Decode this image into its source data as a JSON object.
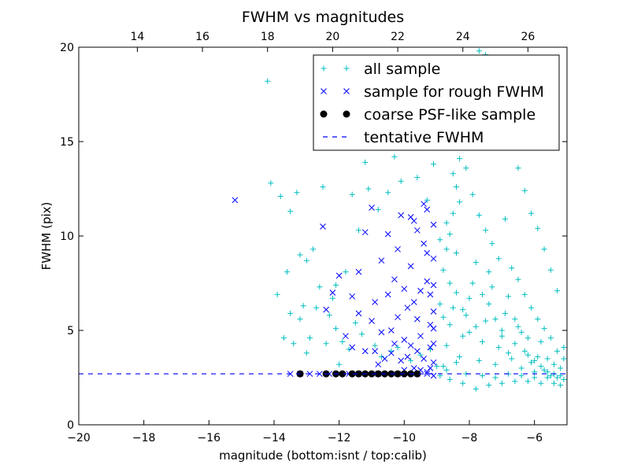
{
  "chart_data": {
    "type": "scatter",
    "title": "FWHM vs magnitudes",
    "xlabel": "magnitude (bottom:isnt / top:calib)",
    "ylabel": "FWHM (pix)",
    "xlim": [
      -20,
      -5
    ],
    "ylim": [
      0,
      20
    ],
    "x_ticks": [
      "−20",
      "−18",
      "−16",
      "−14",
      "−12",
      "−10",
      "−8",
      "−6"
    ],
    "y_ticks": [
      "0",
      "5",
      "10",
      "15",
      "20"
    ],
    "top_axis": {
      "ticks": [
        "14",
        "16",
        "18",
        "20",
        "22",
        "24",
        "26"
      ],
      "calib_minus_isnt_offset": 32.2
    },
    "grid": false,
    "legend_position": "top-right",
    "series": [
      {
        "name": "all sample",
        "marker": "plus",
        "color": "#00bfbf",
        "points": [
          [
            -14.2,
            18.2
          ],
          [
            -14.1,
            12.8
          ],
          [
            -13.8,
            12.1
          ],
          [
            -13.5,
            11.3
          ],
          [
            -13.3,
            12.3
          ],
          [
            -13.6,
            8.1
          ],
          [
            -13.2,
            9.0
          ],
          [
            -13.0,
            8.7
          ],
          [
            -12.8,
            9.3
          ],
          [
            -12.6,
            7.3
          ],
          [
            -12.5,
            12.6
          ],
          [
            -12.7,
            6.2
          ],
          [
            -12.2,
            6.7
          ],
          [
            -12.1,
            7.4
          ],
          [
            -11.8,
            8.1
          ],
          [
            -11.6,
            12.2
          ],
          [
            -11.4,
            10.3
          ],
          [
            -11.2,
            13.9
          ],
          [
            -11.1,
            12.5
          ],
          [
            -10.8,
            11.4
          ],
          [
            -10.5,
            12.3
          ],
          [
            -10.3,
            14.2
          ],
          [
            -10.1,
            12.9
          ],
          [
            -9.9,
            16.3
          ],
          [
            -9.6,
            13.1
          ],
          [
            -9.3,
            11.9
          ],
          [
            -9.1,
            13.8
          ],
          [
            -13.7,
            4.6
          ],
          [
            -13.4,
            4.3
          ],
          [
            -13.2,
            5.6
          ],
          [
            -13.0,
            3.8
          ],
          [
            -12.9,
            4.6
          ],
          [
            -12.4,
            4.3
          ],
          [
            -12.1,
            5.1
          ],
          [
            -11.9,
            4.4
          ],
          [
            -11.7,
            4.0
          ],
          [
            -13.9,
            6.9
          ],
          [
            -13.5,
            5.9
          ],
          [
            -13.1,
            6.3
          ],
          [
            -12.3,
            5.8
          ],
          [
            -12.0,
            3.2
          ],
          [
            -11.5,
            5.4
          ],
          [
            -11.3,
            4.8
          ],
          [
            -10.9,
            4.2
          ],
          [
            -10.7,
            3.6
          ],
          [
            -10.4,
            3.9
          ],
          [
            -10.2,
            4.1
          ],
          [
            -9.8,
            3.4
          ],
          [
            -9.5,
            3.7
          ],
          [
            -9.2,
            4.0
          ],
          [
            -9.0,
            3.1
          ],
          [
            -8.9,
            6.4
          ],
          [
            -8.8,
            8.2
          ],
          [
            -8.7,
            9.3
          ],
          [
            -8.6,
            10.1
          ],
          [
            -8.5,
            11.2
          ],
          [
            -8.4,
            12.6
          ],
          [
            -8.3,
            14.1
          ],
          [
            -8.2,
            15.2
          ],
          [
            -8.1,
            16.5
          ],
          [
            -8.0,
            17.8
          ],
          [
            -7.9,
            19.1
          ],
          [
            -7.7,
            19.8
          ],
          [
            -7.5,
            19.6
          ],
          [
            -7.3,
            18.3
          ],
          [
            -7.1,
            17.1
          ],
          [
            -6.9,
            15.8
          ],
          [
            -6.7,
            14.7
          ],
          [
            -6.5,
            13.6
          ],
          [
            -6.3,
            12.4
          ],
          [
            -6.1,
            11.2
          ],
          [
            -5.9,
            10.4
          ],
          [
            -5.7,
            9.3
          ],
          [
            -5.5,
            8.2
          ],
          [
            -5.3,
            7.1
          ],
          [
            -8.8,
            3.1
          ],
          [
            -8.7,
            4.2
          ],
          [
            -8.6,
            5.3
          ],
          [
            -8.5,
            6.2
          ],
          [
            -8.4,
            7.0
          ],
          [
            -8.3,
            3.6
          ],
          [
            -8.2,
            4.7
          ],
          [
            -8.1,
            5.8
          ],
          [
            -8.0,
            6.7
          ],
          [
            -7.9,
            7.5
          ],
          [
            -7.8,
            8.6
          ],
          [
            -7.7,
            3.4
          ],
          [
            -7.6,
            4.4
          ],
          [
            -7.5,
            5.5
          ],
          [
            -7.4,
            6.4
          ],
          [
            -7.3,
            7.3
          ],
          [
            -7.2,
            3.2
          ],
          [
            -7.1,
            4.1
          ],
          [
            -7.0,
            5.0
          ],
          [
            -6.9,
            5.9
          ],
          [
            -6.8,
            6.8
          ],
          [
            -6.7,
            3.5
          ],
          [
            -6.6,
            4.3
          ],
          [
            -6.5,
            5.2
          ],
          [
            -6.4,
            3.0
          ],
          [
            -6.3,
            3.9
          ],
          [
            -6.2,
            4.6
          ],
          [
            -6.1,
            3.3
          ],
          [
            -6.0,
            2.8
          ],
          [
            -5.9,
            3.6
          ],
          [
            -5.8,
            4.4
          ],
          [
            -5.7,
            2.9
          ],
          [
            -5.6,
            3.5
          ],
          [
            -5.5,
            2.6
          ],
          [
            -5.4,
            3.2
          ],
          [
            -5.3,
            2.5
          ],
          [
            -5.2,
            3.0
          ],
          [
            -5.1,
            2.4
          ],
          [
            -8.9,
            2.6
          ],
          [
            -8.6,
            2.4
          ],
          [
            -8.2,
            2.2
          ],
          [
            -7.8,
            1.9
          ],
          [
            -7.4,
            2.1
          ],
          [
            -7.0,
            2.2
          ],
          [
            -6.6,
            2.3
          ],
          [
            -6.2,
            2.3
          ],
          [
            -5.8,
            2.2
          ],
          [
            -5.4,
            2.2
          ],
          [
            -8.7,
            2.9
          ],
          [
            -8.4,
            3.3
          ],
          [
            -8.1,
            2.7
          ],
          [
            -7.6,
            2.6
          ],
          [
            -7.2,
            2.5
          ],
          [
            -6.8,
            2.7
          ],
          [
            -6.4,
            2.6
          ],
          [
            -6.0,
            2.5
          ],
          [
            -5.6,
            2.5
          ],
          [
            -5.2,
            2.1
          ],
          [
            -8.8,
            5.7
          ],
          [
            -8.6,
            7.5
          ],
          [
            -8.4,
            9.1
          ],
          [
            -8.2,
            6.1
          ],
          [
            -8.0,
            4.9
          ],
          [
            -7.8,
            5.2
          ],
          [
            -7.6,
            6.9
          ],
          [
            -7.4,
            8.1
          ],
          [
            -7.2,
            5.6
          ],
          [
            -7.0,
            4.7
          ],
          [
            -6.8,
            3.8
          ],
          [
            -6.6,
            5.6
          ],
          [
            -6.4,
            4.9
          ],
          [
            -6.2,
            3.7
          ],
          [
            -6.0,
            3.4
          ],
          [
            -5.8,
            3.1
          ],
          [
            -5.6,
            2.8
          ],
          [
            -5.4,
            2.7
          ],
          [
            -5.2,
            2.6
          ],
          [
            -5.1,
            4.1
          ],
          [
            -8.9,
            9.8
          ],
          [
            -8.7,
            10.7
          ],
          [
            -8.5,
            13.3
          ],
          [
            -8.3,
            11.8
          ],
          [
            -8.1,
            13.6
          ],
          [
            -7.9,
            12.2
          ],
          [
            -7.7,
            11.1
          ],
          [
            -7.5,
            10.3
          ],
          [
            -7.3,
            9.6
          ],
          [
            -7.1,
            8.8
          ],
          [
            -6.9,
            10.9
          ],
          [
            -6.7,
            8.3
          ],
          [
            -6.5,
            7.7
          ],
          [
            -6.3,
            6.9
          ],
          [
            -6.1,
            6.2
          ],
          [
            -5.9,
            5.6
          ],
          [
            -5.7,
            5.1
          ],
          [
            -5.5,
            4.6
          ],
          [
            -5.3,
            3.9
          ],
          [
            -5.1,
            3.5
          ]
        ]
      },
      {
        "name": "sample for rough FWHM",
        "marker": "x",
        "color": "#0000ff",
        "points": [
          [
            -15.2,
            11.9
          ],
          [
            -12.5,
            10.5
          ],
          [
            -12.0,
            7.9
          ],
          [
            -11.8,
            4.7
          ],
          [
            -11.6,
            6.8
          ],
          [
            -11.4,
            8.1
          ],
          [
            -11.2,
            10.2
          ],
          [
            -11.0,
            11.5
          ],
          [
            -10.9,
            6.5
          ],
          [
            -10.7,
            8.7
          ],
          [
            -10.5,
            10.1
          ],
          [
            -10.4,
            5.0
          ],
          [
            -10.3,
            7.7
          ],
          [
            -10.2,
            9.3
          ],
          [
            -10.1,
            11.1
          ],
          [
            -10.0,
            4.5
          ],
          [
            -9.9,
            6.2
          ],
          [
            -9.8,
            8.4
          ],
          [
            -9.7,
            10.8
          ],
          [
            -9.6,
            5.6
          ],
          [
            -9.5,
            7.1
          ],
          [
            -9.4,
            9.6
          ],
          [
            -9.3,
            11.4
          ],
          [
            -9.2,
            4.1
          ],
          [
            -9.1,
            6.0
          ],
          [
            -9.1,
            8.8
          ],
          [
            -9.1,
            10.6
          ],
          [
            -9.1,
            3.3
          ],
          [
            -9.2,
            5.3
          ],
          [
            -9.3,
            7.6
          ],
          [
            -9.4,
            3.5
          ],
          [
            -9.5,
            4.7
          ],
          [
            -9.6,
            3.9
          ],
          [
            -9.7,
            6.5
          ],
          [
            -9.8,
            4.2
          ],
          [
            -9.9,
            3.6
          ],
          [
            -10.0,
            7.2
          ],
          [
            -10.1,
            3.4
          ],
          [
            -10.2,
            5.7
          ],
          [
            -10.3,
            4.3
          ],
          [
            -10.4,
            3.8
          ],
          [
            -10.5,
            6.9
          ],
          [
            -10.6,
            3.5
          ],
          [
            -10.7,
            4.9
          ],
          [
            -10.8,
            3.2
          ],
          [
            -10.9,
            3.9
          ],
          [
            -11.0,
            5.5
          ],
          [
            -11.2,
            3.9
          ],
          [
            -11.4,
            5.9
          ],
          [
            -11.6,
            4.1
          ],
          [
            -12.2,
            7.0
          ],
          [
            -12.4,
            6.1
          ],
          [
            -9.3,
            9.1
          ],
          [
            -9.4,
            11.7
          ],
          [
            -9.6,
            10.3
          ],
          [
            -9.8,
            11.0
          ],
          [
            -9.2,
            6.9
          ],
          [
            -9.1,
            5.1
          ],
          [
            -9.1,
            7.4
          ],
          [
            -9.1,
            4.3
          ],
          [
            -9.2,
            3.0
          ],
          [
            -9.3,
            2.8
          ],
          [
            -9.5,
            2.9
          ],
          [
            -9.7,
            3.0
          ],
          [
            -10.0,
            2.9
          ],
          [
            -13.5,
            2.7
          ],
          [
            -13.2,
            2.7
          ],
          [
            -12.9,
            2.7
          ],
          [
            -12.6,
            2.7
          ],
          [
            -12.3,
            2.7
          ],
          [
            -12.0,
            2.7
          ],
          [
            -11.7,
            2.7
          ],
          [
            -11.4,
            2.7
          ],
          [
            -11.1,
            2.7
          ],
          [
            -10.8,
            2.7
          ],
          [
            -10.5,
            2.7
          ],
          [
            -10.2,
            2.7
          ],
          [
            -9.9,
            2.7
          ],
          [
            -9.6,
            2.7
          ],
          [
            -9.3,
            2.7
          ],
          [
            -9.1,
            2.6
          ]
        ]
      },
      {
        "name": "coarse PSF-like sample",
        "marker": "circle",
        "color": "#000000",
        "points": [
          [
            -13.2,
            2.7
          ],
          [
            -12.4,
            2.7
          ],
          [
            -12.1,
            2.7
          ],
          [
            -11.9,
            2.7
          ],
          [
            -11.6,
            2.7
          ],
          [
            -11.4,
            2.7
          ],
          [
            -11.2,
            2.7
          ],
          [
            -11.0,
            2.7
          ],
          [
            -10.8,
            2.7
          ],
          [
            -10.6,
            2.7
          ],
          [
            -10.4,
            2.7
          ],
          [
            -10.2,
            2.7
          ],
          [
            -10.0,
            2.7
          ],
          [
            -9.8,
            2.7
          ],
          [
            -9.6,
            2.7
          ]
        ]
      },
      {
        "name": "tentative FWHM",
        "marker": "dashed-line",
        "color": "#0000ff",
        "y_value": 2.7
      }
    ]
  }
}
